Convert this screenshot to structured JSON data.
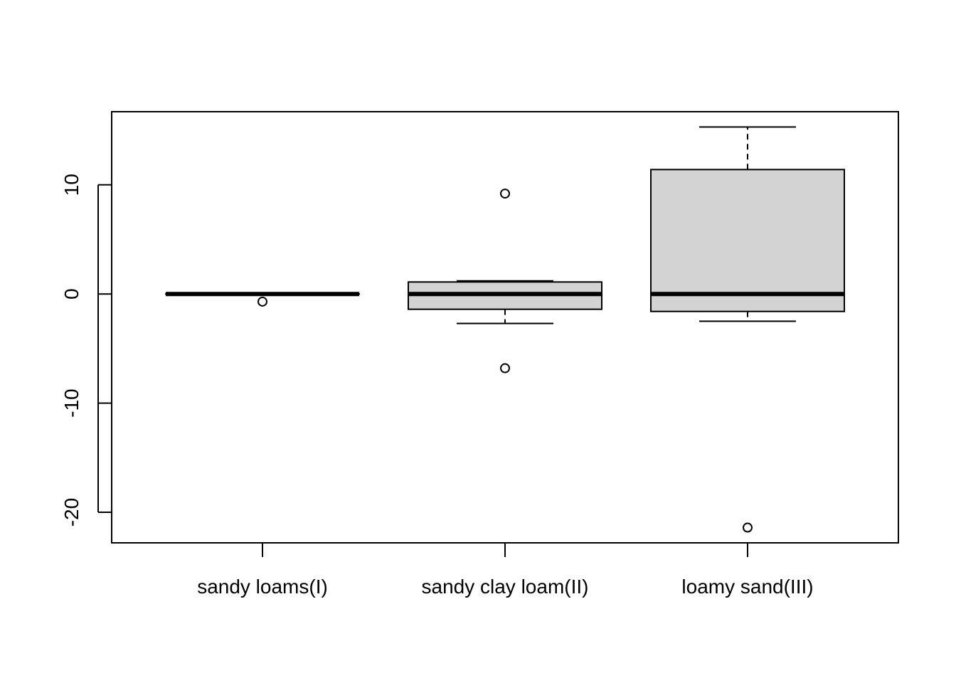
{
  "chart_data": {
    "type": "box",
    "title": "",
    "xlabel": "",
    "ylabel": "",
    "ylim": [
      -22.8,
      16.7
    ],
    "y_ticks": [
      {
        "value": 10,
        "label": "10"
      },
      {
        "value": 0,
        "label": "0"
      },
      {
        "value": -10,
        "label": "-10"
      },
      {
        "value": -20,
        "label": "-20"
      }
    ],
    "box_fill": "#d3d3d3",
    "categories": [
      "sandy loams(I)",
      "sandy clay loam(II)",
      "loamy sand(III)"
    ],
    "boxes": [
      {
        "name": "sandy loams(I)",
        "whisker_low": 0,
        "q1": 0,
        "median": 0,
        "q3": 0,
        "whisker_high": 0,
        "outliers": [
          -0.7
        ]
      },
      {
        "name": "sandy clay loam(II)",
        "whisker_low": -2.7,
        "q1": -1.4,
        "median": 0,
        "q3": 1.1,
        "whisker_high": 1.2,
        "outliers": [
          9.2,
          -6.8
        ]
      },
      {
        "name": "loamy sand(III)",
        "whisker_low": -2.5,
        "q1": -1.6,
        "median": 0,
        "q3": 11.4,
        "whisker_high": 15.3,
        "outliers": [
          -21.4
        ]
      }
    ]
  }
}
